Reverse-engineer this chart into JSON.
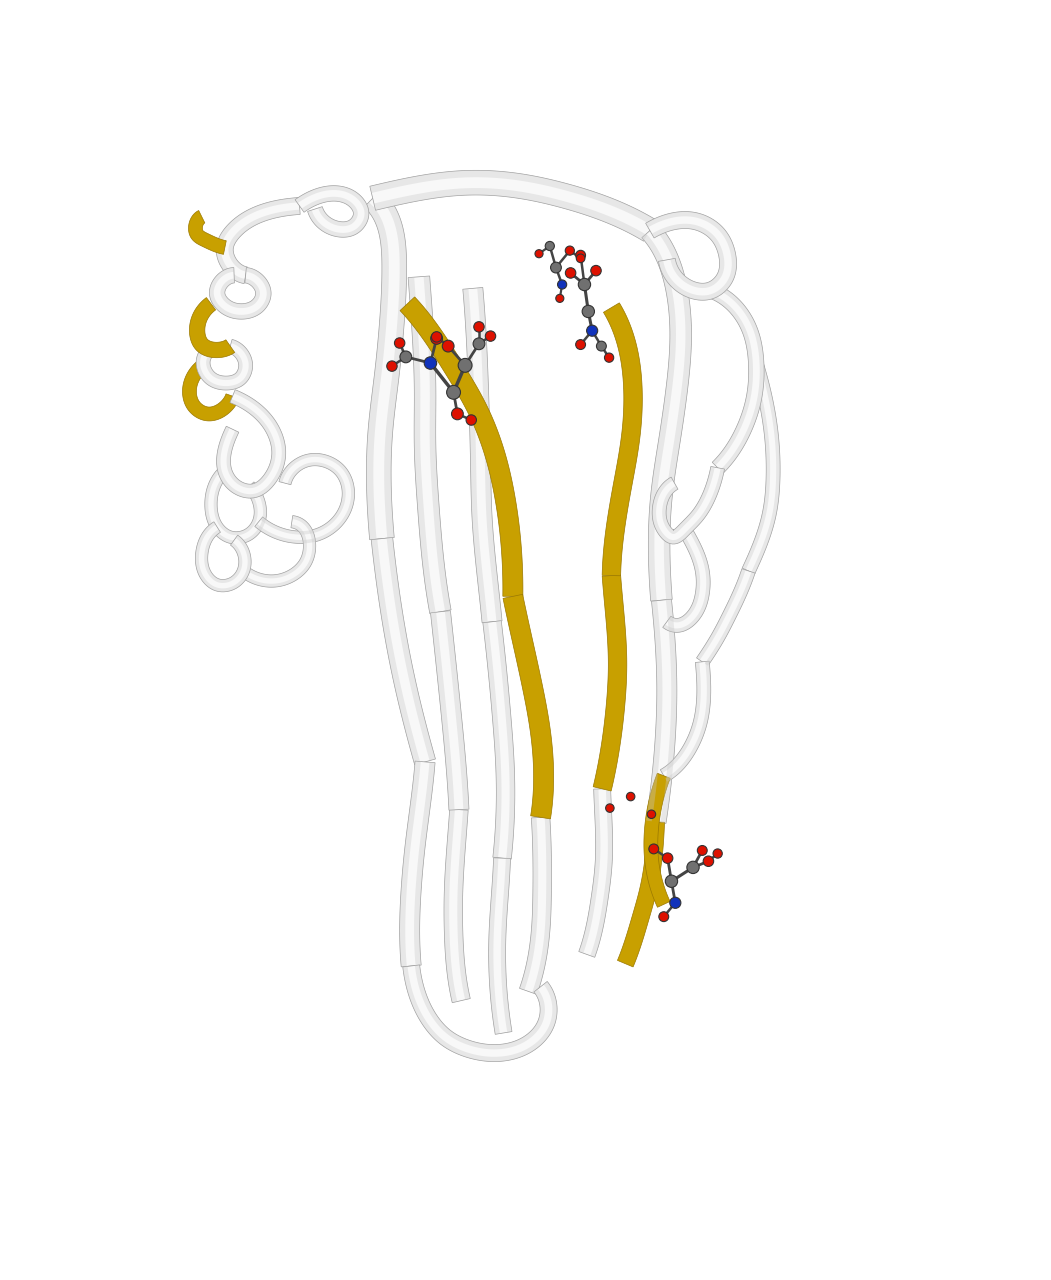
{
  "background_color": "#ffffff",
  "figsize": [
    10.51,
    12.8
  ],
  "dpi": 100,
  "white_ribbon": "#f8f8f8",
  "ribbon_shadow": "#c8c8c8",
  "ribbon_edge": "#999999",
  "gold": "#c8a000",
  "gold_edge": "#9a7800",
  "red_o": "#dd1100",
  "gray_c": "#707070",
  "blue_n": "#1133bb",
  "bond_color": "#444444"
}
